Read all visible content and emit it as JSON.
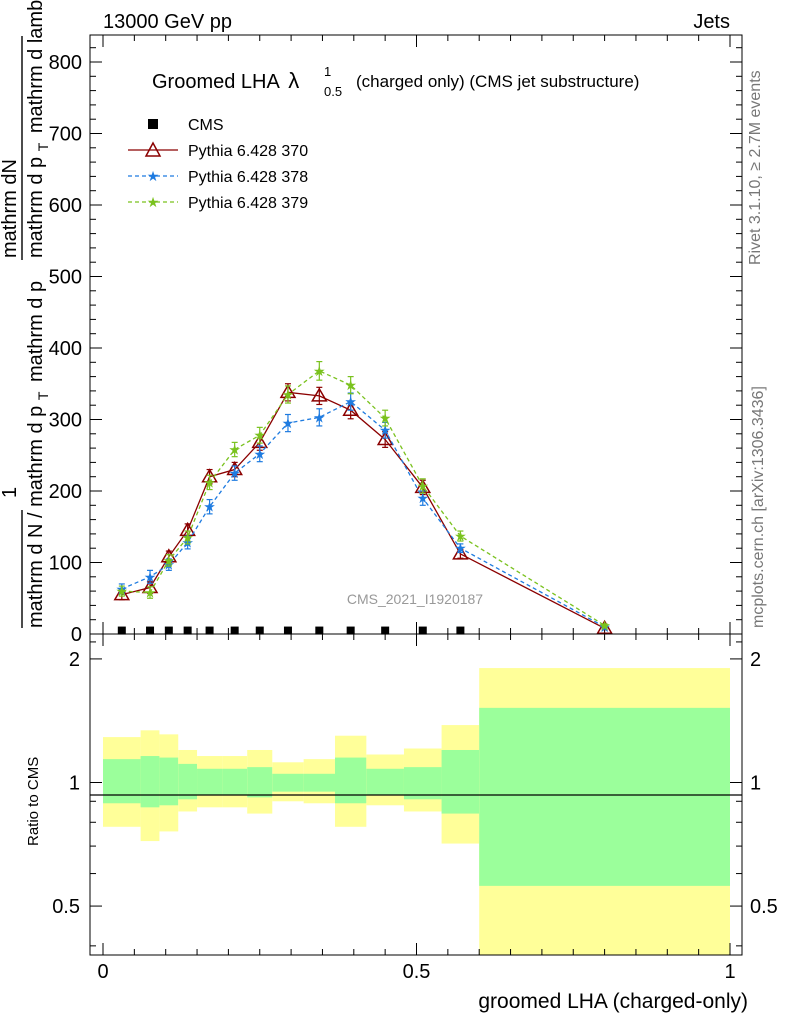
{
  "header": {
    "energy": "13000 GeV pp",
    "category": "Jets",
    "rivet_note": "Rivet 3.1.10, ≥ 2.7M events",
    "mcplots_note": "mcplots.cern.ch [arXiv:1306.3436]",
    "analysis_id": "CMS_2021_I1920187"
  },
  "chart_data": [
    {
      "type": "line",
      "title": "Groomed LHA",
      "title_symbol": "λ",
      "title_sup": "1",
      "title_sub": "0.5",
      "subtitle": "(charged only) (CMS jet substructure)",
      "ylabel_num_small": "1",
      "ylabel_num": "mathrm dN",
      "ylabel_den": "mathrm d p",
      "ylabel_den_sub": "T",
      "ylabel_den_tail": "mathrm d lambda",
      "ylabel_front": "mathrm d N / mathrm d p",
      "ylabel_front_sub": "T",
      "ylabel_front_tail": "mathrm d p",
      "xlim": [
        0,
        1
      ],
      "ylim": [
        0,
        840
      ],
      "yticks": [
        0,
        100,
        200,
        300,
        400,
        500,
        600,
        700,
        800
      ],
      "ytick_labels": [
        "0",
        "100",
        "200",
        "300",
        "400",
        "500",
        "600",
        "700",
        "800"
      ],
      "legend_position": "top-left",
      "series": [
        {
          "name": "CMS",
          "marker": "square",
          "color": "#000000",
          "x": [
            0.03,
            0.075,
            0.105,
            0.135,
            0.17,
            0.21,
            0.25,
            0.295,
            0.345,
            0.395,
            0.45,
            0.51,
            0.57
          ],
          "y": [
            2,
            2,
            2,
            2,
            2,
            2,
            2,
            2,
            2,
            2,
            2,
            2,
            2
          ]
        },
        {
          "name": "Pythia 6.428 370",
          "marker": "triangle-open",
          "color": "#8b0000",
          "dash": "solid",
          "x": [
            0.03,
            0.075,
            0.105,
            0.135,
            0.17,
            0.21,
            0.25,
            0.295,
            0.345,
            0.395,
            0.45,
            0.51,
            0.57,
            0.8
          ],
          "y": [
            55,
            65,
            108,
            145,
            220,
            230,
            268,
            338,
            333,
            313,
            272,
            205,
            112,
            8
          ],
          "err": [
            7,
            8,
            8,
            9,
            10,
            10,
            11,
            12,
            12,
            12,
            11,
            10,
            6,
            2
          ]
        },
        {
          "name": "Pythia 6.428 378",
          "marker": "star",
          "color": "#1e7be0",
          "dash": "dashed",
          "x": [
            0.03,
            0.075,
            0.105,
            0.135,
            0.17,
            0.21,
            0.25,
            0.295,
            0.345,
            0.395,
            0.45,
            0.51,
            0.57,
            0.8
          ],
          "y": [
            63,
            80,
            97,
            128,
            178,
            225,
            252,
            295,
            303,
            325,
            285,
            190,
            120,
            10
          ],
          "err": [
            7,
            9,
            8,
            9,
            10,
            10,
            11,
            12,
            12,
            12,
            11,
            10,
            6,
            2
          ]
        },
        {
          "name": "Pythia 6.428 379",
          "marker": "star",
          "color": "#7ac21e",
          "dash": "dashed",
          "x": [
            0.03,
            0.075,
            0.105,
            0.135,
            0.17,
            0.21,
            0.25,
            0.295,
            0.345,
            0.395,
            0.45,
            0.51,
            0.57,
            0.8
          ],
          "y": [
            60,
            58,
            103,
            135,
            212,
            258,
            278,
            335,
            368,
            348,
            302,
            207,
            137,
            12
          ],
          "err": [
            7,
            8,
            8,
            9,
            10,
            10,
            11,
            12,
            13,
            12,
            11,
            10,
            7,
            2
          ]
        }
      ]
    },
    {
      "type": "area",
      "ylabel": "Ratio to CMS",
      "xlabel": "groomed LHA (charged-only)",
      "xlim": [
        0,
        1
      ],
      "ylim": [
        0.38,
        2.3
      ],
      "xticks": [
        0,
        0.5,
        1
      ],
      "xtick_labels": [
        "0",
        "0.5",
        "1"
      ],
      "yticks": [
        0.5,
        1,
        2
      ],
      "ytick_labels": [
        "0.5",
        "1",
        "2"
      ],
      "bands": {
        "bin_edges": [
          0,
          0.06,
          0.09,
          0.12,
          0.15,
          0.19,
          0.23,
          0.27,
          0.32,
          0.37,
          0.42,
          0.48,
          0.54,
          0.6,
          1.0
        ],
        "stat_up": [
          1.14,
          1.16,
          1.15,
          1.11,
          1.08,
          1.08,
          1.09,
          1.05,
          1.05,
          1.15,
          1.08,
          1.09,
          1.2,
          1.52
        ],
        "stat_down": [
          0.89,
          0.87,
          0.88,
          0.91,
          0.93,
          0.93,
          0.92,
          0.95,
          0.95,
          0.89,
          0.93,
          0.91,
          0.84,
          0.56
        ],
        "total_up": [
          1.29,
          1.34,
          1.31,
          1.2,
          1.16,
          1.16,
          1.2,
          1.12,
          1.14,
          1.3,
          1.17,
          1.21,
          1.38,
          1.9
        ],
        "total_down": [
          0.78,
          0.72,
          0.76,
          0.85,
          0.87,
          0.87,
          0.84,
          0.9,
          0.89,
          0.78,
          0.88,
          0.85,
          0.71,
          0.38
        ]
      },
      "colors": {
        "stat": "#9bff9b",
        "total": "#ffff99"
      }
    }
  ]
}
